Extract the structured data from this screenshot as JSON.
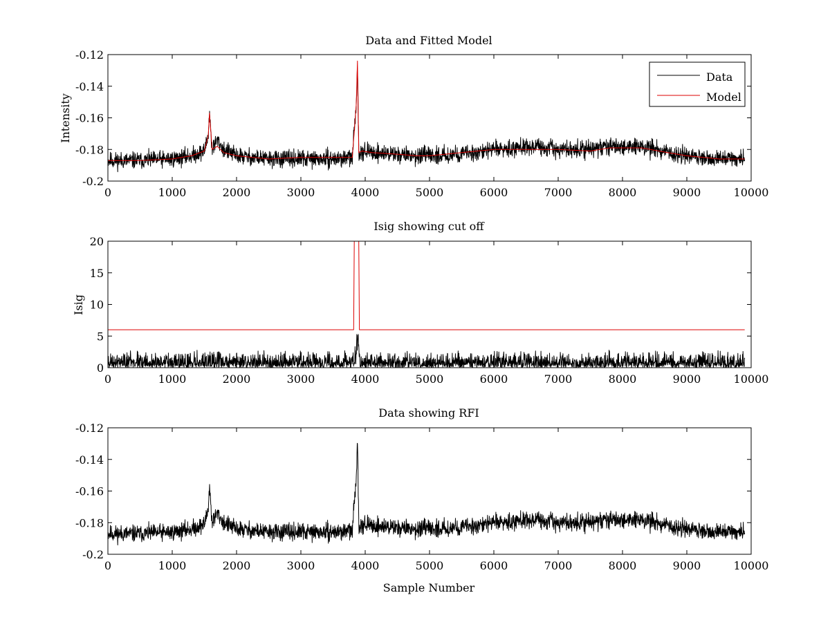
{
  "figure": {
    "background": "#ffffff"
  },
  "chart_data": [
    {
      "id": "top",
      "type": "line",
      "title": "Data and Fitted Model",
      "xlabel": "",
      "ylabel": "Intensity",
      "xlim": [
        0,
        10000
      ],
      "ylim": [
        -0.2,
        -0.12
      ],
      "xticks": [
        0,
        1000,
        2000,
        3000,
        4000,
        5000,
        6000,
        7000,
        8000,
        9000,
        10000
      ],
      "xtick_labels": [
        "0",
        "1000",
        "2000",
        "3000",
        "4000",
        "5000",
        "6000",
        "7000",
        "8000",
        "9000",
        "10000"
      ],
      "yticks": [
        -0.2,
        -0.18,
        -0.16,
        -0.14,
        -0.12
      ],
      "ytick_labels": [
        "-0.2",
        "-0.18",
        "-0.16",
        "-0.14",
        "-0.12"
      ],
      "grid": false,
      "legend": {
        "position": "top-right",
        "entries": [
          "Data",
          "Model"
        ]
      },
      "series": [
        {
          "name": "Data",
          "color": "#000000",
          "style": "noisy",
          "noise_amplitude": 0.004,
          "seed": 11,
          "x": [
            0,
            500,
            1000,
            1300,
            1500,
            1560,
            1580,
            1620,
            1700,
            1800,
            2000,
            2500,
            3000,
            3500,
            3800,
            3860,
            3880,
            3900,
            3950,
            4100,
            4500,
            4800,
            5000,
            5500,
            6000,
            6500,
            7000,
            7500,
            7800,
            8300,
            8700,
            9000,
            9500,
            9900
          ],
          "y": [
            -0.187,
            -0.187,
            -0.186,
            -0.184,
            -0.181,
            -0.171,
            -0.157,
            -0.18,
            -0.174,
            -0.18,
            -0.184,
            -0.186,
            -0.186,
            -0.186,
            -0.185,
            -0.152,
            -0.126,
            -0.182,
            -0.181,
            -0.182,
            -0.183,
            -0.184,
            -0.184,
            -0.183,
            -0.18,
            -0.178,
            -0.18,
            -0.18,
            -0.178,
            -0.178,
            -0.182,
            -0.184,
            -0.186,
            -0.186
          ]
        },
        {
          "name": "Model",
          "color": "#dd0000",
          "style": "smooth",
          "x": [
            0,
            500,
            1000,
            1300,
            1500,
            1560,
            1580,
            1620,
            1700,
            1800,
            2000,
            2500,
            3000,
            3500,
            3800,
            3860,
            3880,
            3900,
            3950,
            4100,
            4500,
            4800,
            5000,
            5500,
            6000,
            6500,
            7000,
            7500,
            7800,
            8300,
            8700,
            9000,
            9500,
            9900
          ],
          "y": [
            -0.187,
            -0.187,
            -0.186,
            -0.184,
            -0.181,
            -0.171,
            -0.157,
            -0.18,
            -0.178,
            -0.182,
            -0.184,
            -0.186,
            -0.185,
            -0.185,
            -0.185,
            -0.152,
            -0.124,
            -0.182,
            -0.181,
            -0.182,
            -0.183,
            -0.184,
            -0.184,
            -0.182,
            -0.18,
            -0.18,
            -0.18,
            -0.181,
            -0.179,
            -0.179,
            -0.182,
            -0.184,
            -0.186,
            -0.186
          ]
        }
      ]
    },
    {
      "id": "middle",
      "type": "line",
      "title": "Isig showing cut off",
      "xlabel": "",
      "ylabel": "Isig",
      "xlim": [
        0,
        10000
      ],
      "ylim": [
        0,
        20
      ],
      "xticks": [
        0,
        1000,
        2000,
        3000,
        4000,
        5000,
        6000,
        7000,
        8000,
        9000,
        10000
      ],
      "xtick_labels": [
        "0",
        "1000",
        "2000",
        "3000",
        "4000",
        "5000",
        "6000",
        "7000",
        "8000",
        "9000",
        "10000"
      ],
      "yticks": [
        0,
        5,
        10,
        15,
        20
      ],
      "ytick_labels": [
        "0",
        "5",
        "10",
        "15",
        "20"
      ],
      "grid": false,
      "series": [
        {
          "name": "Isig",
          "color": "#000000",
          "style": "abs-noise",
          "noise_amplitude": 1.6,
          "seed": 23,
          "x": [
            0,
            3800,
            3860,
            3880,
            3920,
            9900
          ],
          "y": [
            0.6,
            0.6,
            2.5,
            5.0,
            0.6,
            0.6
          ]
        },
        {
          "name": "Cut off",
          "color": "#dd0000",
          "style": "step",
          "x": [
            0,
            3820,
            3830,
            3900,
            3910,
            9900
          ],
          "y": [
            6,
            6,
            20,
            20,
            6,
            6
          ]
        }
      ]
    },
    {
      "id": "bottom",
      "type": "line",
      "title": "Data showing RFI",
      "xlabel": "Sample Number",
      "ylabel": "",
      "xlim": [
        0,
        10000
      ],
      "ylim": [
        -0.2,
        -0.12
      ],
      "xticks": [
        0,
        1000,
        2000,
        3000,
        4000,
        5000,
        6000,
        7000,
        8000,
        9000,
        10000
      ],
      "xtick_labels": [
        "0",
        "1000",
        "2000",
        "3000",
        "4000",
        "5000",
        "6000",
        "7000",
        "8000",
        "9000",
        "10000"
      ],
      "yticks": [
        -0.2,
        -0.18,
        -0.16,
        -0.14,
        -0.12
      ],
      "ytick_labels": [
        "-0.2",
        "-0.18",
        "-0.16",
        "-0.14",
        "-0.12"
      ],
      "grid": false,
      "series": [
        {
          "name": "Data",
          "color": "#000000",
          "style": "noisy",
          "noise_amplitude": 0.004,
          "seed": 11,
          "x": [
            0,
            500,
            1000,
            1300,
            1500,
            1560,
            1580,
            1620,
            1700,
            1800,
            2000,
            2500,
            3000,
            3500,
            3800,
            3860,
            3880,
            3900,
            3950,
            4100,
            4500,
            4800,
            5000,
            5500,
            6000,
            6500,
            7000,
            7500,
            7800,
            8300,
            8700,
            9000,
            9500,
            9900
          ],
          "y": [
            -0.187,
            -0.187,
            -0.186,
            -0.184,
            -0.181,
            -0.171,
            -0.157,
            -0.18,
            -0.174,
            -0.18,
            -0.184,
            -0.186,
            -0.186,
            -0.186,
            -0.185,
            -0.152,
            -0.126,
            -0.182,
            -0.181,
            -0.182,
            -0.183,
            -0.184,
            -0.184,
            -0.183,
            -0.18,
            -0.178,
            -0.18,
            -0.18,
            -0.178,
            -0.178,
            -0.182,
            -0.184,
            -0.186,
            -0.186
          ]
        }
      ]
    }
  ]
}
